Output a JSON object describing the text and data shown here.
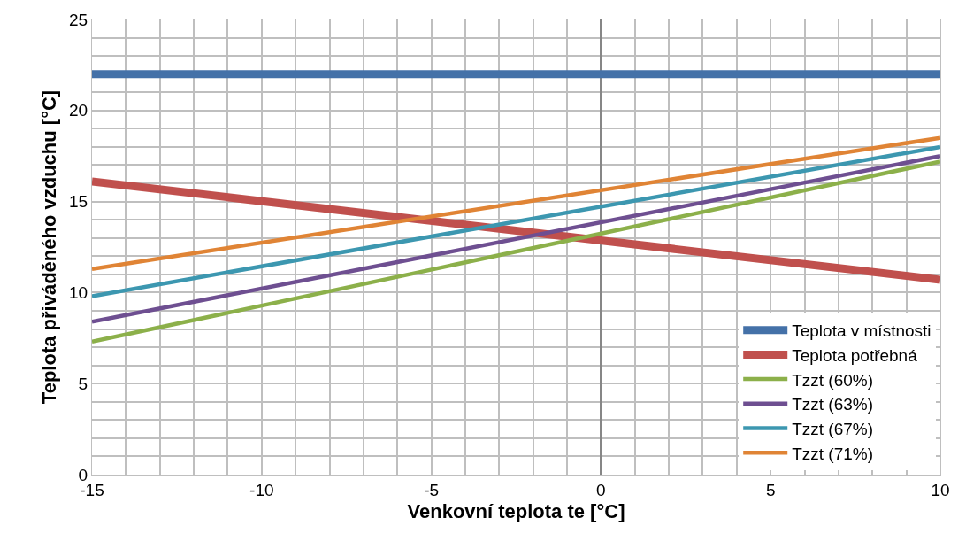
{
  "chart_data": {
    "type": "line",
    "xlabel": "Venkovní teplota te [°C]",
    "ylabel": "Teplota přiváděného vzduchu [°C]",
    "x": [
      -15,
      10
    ],
    "series": [
      {
        "name": "Teplota v místnosti",
        "color": "#4471a8",
        "values": [
          22,
          22
        ]
      },
      {
        "name": "Teplota potřebná",
        "color": "#c0504d",
        "values": [
          16.1,
          10.7
        ]
      },
      {
        "name": "Tzzt (60%)",
        "color": "#8cb04a",
        "values": [
          7.3,
          17.2
        ]
      },
      {
        "name": "Tzzt (63%)",
        "color": "#6e4f91",
        "values": [
          8.4,
          17.5
        ]
      },
      {
        "name": "Tzzt (67%)",
        "color": "#3c97b0",
        "values": [
          9.8,
          18.0
        ]
      },
      {
        "name": "Tzzt (71%)",
        "color": "#e08435",
        "values": [
          11.3,
          18.5
        ]
      }
    ],
    "xlim": [
      -15,
      10
    ],
    "xticks": [
      -15,
      {
        "value": -14,
        "label": null
      },
      {
        "value": -13,
        "label": null
      },
      {
        "value": -12,
        "label": null
      },
      {
        "value": -11,
        "label": null
      },
      -10,
      {
        "value": -9,
        "label": null
      },
      {
        "value": -8,
        "label": null
      },
      {
        "value": -7,
        "label": null
      },
      {
        "value": -6,
        "label": null
      },
      -5,
      {
        "value": -4,
        "label": null
      },
      {
        "value": -3,
        "label": null
      },
      {
        "value": -2,
        "label": null
      },
      {
        "value": -1,
        "label": null
      },
      0,
      {
        "value": 1,
        "label": null
      },
      {
        "value": 2,
        "label": null
      },
      {
        "value": 3,
        "label": null
      },
      {
        "value": 4,
        "label": null
      },
      5,
      {
        "value": 6,
        "label": null
      },
      {
        "value": 7,
        "label": null
      },
      {
        "value": 8,
        "label": null
      },
      {
        "value": 9,
        "label": null
      },
      10
    ],
    "ylim": [
      0,
      25
    ],
    "yticks": [
      0,
      {
        "value": 1,
        "label": null
      },
      {
        "value": 2,
        "label": null
      },
      {
        "value": 3,
        "label": null
      },
      {
        "value": 4,
        "label": null
      },
      5,
      {
        "value": 6,
        "label": null
      },
      {
        "value": 7,
        "label": null
      },
      {
        "value": 8,
        "label": null
      },
      {
        "value": 9,
        "label": null
      },
      10,
      {
        "value": 11,
        "label": null
      },
      {
        "value": 12,
        "label": null
      },
      {
        "value": 13,
        "label": null
      },
      {
        "value": 14,
        "label": null
      },
      15,
      {
        "value": 16,
        "label": null
      },
      {
        "value": 17,
        "label": null
      },
      {
        "value": 18,
        "label": null
      },
      {
        "value": 19,
        "label": null
      },
      20,
      {
        "value": 21,
        "label": null
      },
      {
        "value": 22,
        "label": null
      },
      {
        "value": 23,
        "label": null
      },
      {
        "value": 24,
        "label": null
      },
      25
    ],
    "grid": true,
    "legend": "bottom right",
    "marker": "none",
    "line_style": "solid"
  }
}
